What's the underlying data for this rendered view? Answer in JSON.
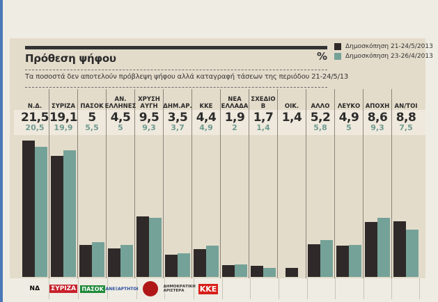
{
  "header": {
    "title": "Πρόθεση ψήφου",
    "unit": "%",
    "subtitle": "Τα ποσοστά δεν αποτελούν πρόβλεψη ψήφου αλλά καταγραφή τάσεων της περιόδου 21-24/5/13"
  },
  "legend": [
    {
      "label": "Δημοσκόπηση 21-24/5/2013",
      "color": "#2f2a29"
    },
    {
      "label": "Δημοσκόπηση 23-26/4/2013",
      "color": "#75a298"
    }
  ],
  "columns": [
    {
      "label": "Ν.Δ.",
      "v1": "21,5",
      "v2": "20,5",
      "logo": "ΝΔ"
    },
    {
      "label": "ΣΥΡΙΖΑ",
      "v1": "19,1",
      "v2": "19,9",
      "logo": "ΣΥΡΙΖΑ"
    },
    {
      "label": "ΠΑΣΟΚ",
      "v1": "5",
      "v2": "5,5",
      "logo": "ΠΑΣΟΚ"
    },
    {
      "label": "ΑΝ.\nΕΛΛΗΝΕΣ",
      "v1": "4,5",
      "v2": "5",
      "logo": "ΑΝΕΞΑΡΤΗΤΟΙ"
    },
    {
      "label": "ΧΡΥΣΗ\nΑΥΓΗ",
      "v1": "9,5",
      "v2": "9,3",
      "logo": "ΧΑ"
    },
    {
      "label": "ΔΗΜ.ΑΡ.",
      "v1": "3,5",
      "v2": "3,7",
      "logo": "ΔΗΜΟΚΡΑΤΙΚΗ ΑΡΙΣΤΕΡΑ"
    },
    {
      "label": "ΚΚΕ",
      "v1": "4,4",
      "v2": "4,9",
      "logo": "ΚΚΕ"
    },
    {
      "label": "ΝΕΑ\nΕΛΛΑΔΑ",
      "v1": "1,9",
      "v2": "2",
      "logo": ""
    },
    {
      "label": "ΣΧΕΔΙΟ\nΒ",
      "v1": "1,7",
      "v2": "1,4",
      "logo": ""
    },
    {
      "label": "ΟΙΚ.",
      "v1": "1,4",
      "v2": "",
      "logo": ""
    },
    {
      "label": "ΑΛΛΟ",
      "v1": "5,2",
      "v2": "5,8",
      "logo": ""
    },
    {
      "label": "ΛΕΥΚΟ",
      "v1": "4,9",
      "v2": "5",
      "logo": ""
    },
    {
      "label": "ΑΠΟΧΗ",
      "v1": "8,6",
      "v2": "9,3",
      "logo": ""
    },
    {
      "label": "ΑΝ/ΤΟΙ",
      "v1": "8,8",
      "v2": "7,5",
      "logo": ""
    }
  ],
  "chart_data": {
    "type": "bar",
    "title": "Πρόθεση ψήφου",
    "subtitle": "Τα ποσοστά δεν αποτελούν πρόβλεψη ψήφου αλλά καταγραφή τάσεων της περιόδου 21-24/5/13",
    "xlabel": "",
    "ylabel": "%",
    "categories": [
      "Ν.Δ.",
      "ΣΥΡΙΖΑ",
      "ΠΑΣΟΚ",
      "ΑΝ. ΕΛΛΗΝΕΣ",
      "ΧΡΥΣΗ ΑΥΓΗ",
      "ΔΗΜ.ΑΡ.",
      "ΚΚΕ",
      "ΝΕΑ ΕΛΛΑΔΑ",
      "ΣΧΕΔΙΟ Β",
      "ΟΙΚ.",
      "ΑΛΛΟ",
      "ΛΕΥΚΟ",
      "ΑΠΟΧΗ",
      "ΑΝ/ΤΟΙ"
    ],
    "series": [
      {
        "name": "Δημοσκόπηση 21-24/5/2013",
        "color": "#2f2a29",
        "values": [
          21.5,
          19.1,
          5,
          4.5,
          9.5,
          3.5,
          4.4,
          1.9,
          1.7,
          1.4,
          5.2,
          4.9,
          8.6,
          8.8
        ]
      },
      {
        "name": "Δημοσκόπηση 23-26/4/2013",
        "color": "#75a298",
        "values": [
          20.5,
          19.9,
          5.5,
          5,
          9.3,
          3.7,
          4.9,
          2,
          1.4,
          null,
          5.8,
          5,
          9.3,
          7.5
        ]
      }
    ],
    "ylim": [
      0,
      23
    ],
    "grid": false,
    "legend_position": "top-right"
  }
}
